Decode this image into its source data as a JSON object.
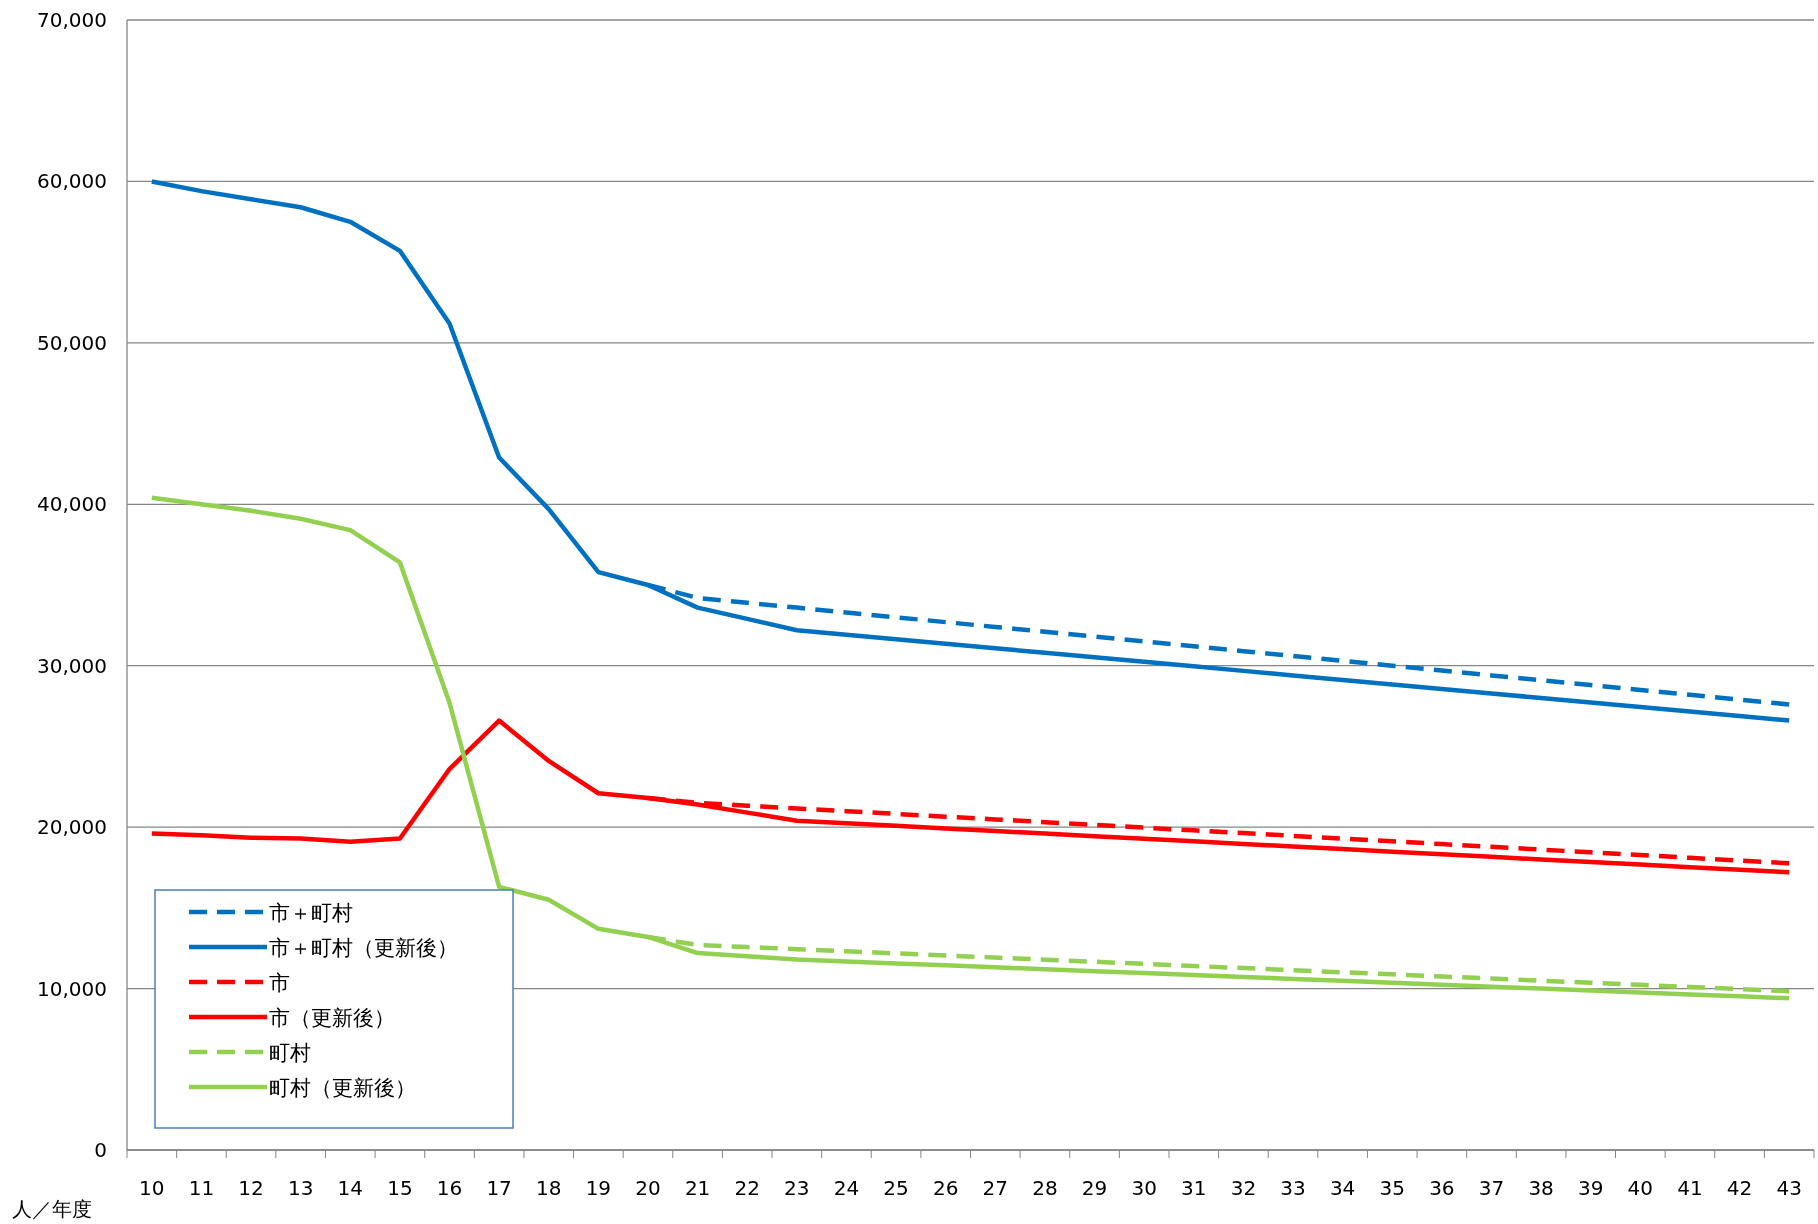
{
  "chart_data": {
    "type": "line",
    "xlabel": "人／年度",
    "categories": [
      "10",
      "11",
      "12",
      "13",
      "14",
      "15",
      "16",
      "17",
      "18",
      "19",
      "20",
      "21",
      "22",
      "23",
      "24",
      "25",
      "26",
      "27",
      "28",
      "29",
      "30",
      "31",
      "32",
      "33",
      "34",
      "35",
      "36",
      "37",
      "38",
      "39",
      "40",
      "41",
      "42",
      "43"
    ],
    "series": [
      {
        "name": "市＋町村",
        "color": "#0070c0",
        "line_style": "dashed",
        "values": [
          null,
          null,
          null,
          null,
          null,
          null,
          null,
          null,
          null,
          null,
          35000,
          34200,
          33900,
          33600,
          33300,
          33000,
          32700,
          32400,
          32100,
          31800,
          31500,
          31200,
          30900,
          30600,
          30300,
          30000,
          29700,
          29400,
          29100,
          28800,
          28500,
          28200,
          27900,
          27600
        ]
      },
      {
        "name": "市＋町村（更新後）",
        "color": "#0070c0",
        "line_style": "solid",
        "values": [
          60000,
          59400,
          58900,
          58400,
          57500,
          55700,
          51200,
          42900,
          39700,
          35800,
          35000,
          33600,
          32900,
          32200,
          31920,
          31640,
          31360,
          31080,
          30800,
          30520,
          30240,
          29960,
          29680,
          29400,
          29120,
          28840,
          28560,
          28280,
          28000,
          27720,
          27440,
          27160,
          26880,
          26600
        ]
      },
      {
        "name": "市",
        "color": "#ff0000",
        "line_style": "dashed",
        "values": [
          null,
          null,
          null,
          null,
          null,
          null,
          null,
          null,
          null,
          null,
          21800,
          21500,
          21330,
          21160,
          20990,
          20820,
          20650,
          20480,
          20310,
          20140,
          19970,
          19800,
          19630,
          19460,
          19290,
          19120,
          18950,
          18780,
          18610,
          18440,
          18270,
          18100,
          17930,
          17760
        ]
      },
      {
        "name": "市（更新後）",
        "color": "#ff0000",
        "line_style": "solid",
        "values": [
          19600,
          19500,
          19350,
          19300,
          19100,
          19300,
          23600,
          26600,
          24100,
          22100,
          21800,
          21400,
          20900,
          20400,
          20240,
          20080,
          19920,
          19760,
          19600,
          19440,
          19280,
          19120,
          18960,
          18800,
          18640,
          18480,
          18320,
          18160,
          18000,
          17840,
          17680,
          17520,
          17360,
          17200
        ]
      },
      {
        "name": "町村",
        "color": "#92d050",
        "line_style": "dashed",
        "values": [
          null,
          null,
          null,
          null,
          null,
          null,
          null,
          null,
          null,
          null,
          13200,
          12700,
          12570,
          12440,
          12310,
          12180,
          12050,
          11920,
          11790,
          11660,
          11530,
          11400,
          11270,
          11140,
          11010,
          10880,
          10750,
          10620,
          10490,
          10360,
          10230,
          10100,
          9970,
          9840
        ]
      },
      {
        "name": "町村（更新後）",
        "color": "#92d050",
        "line_style": "solid",
        "values": [
          40400,
          40000,
          39600,
          39100,
          38400,
          36400,
          27700,
          16300,
          15500,
          13700,
          13200,
          12200,
          12000,
          11800,
          11680,
          11560,
          11440,
          11320,
          11200,
          11080,
          10960,
          10840,
          10720,
          10600,
          10480,
          10360,
          10240,
          10120,
          10000,
          9880,
          9760,
          9640,
          9520,
          9400
        ]
      }
    ],
    "ylim": [
      0,
      70000
    ],
    "yticks": [
      0,
      {
        "value": 10000,
        "label": "10,000"
      },
      {
        "value": 20000,
        "label": "20,000"
      },
      {
        "value": 30000,
        "label": "30,000"
      },
      {
        "value": 40000,
        "label": "40,000"
      },
      {
        "value": 50000,
        "label": "50,000"
      },
      {
        "value": 60000,
        "label": "60,000"
      },
      {
        "value": 70000,
        "label": "70,000"
      }
    ],
    "grid": "y",
    "legend": "bottom left"
  }
}
